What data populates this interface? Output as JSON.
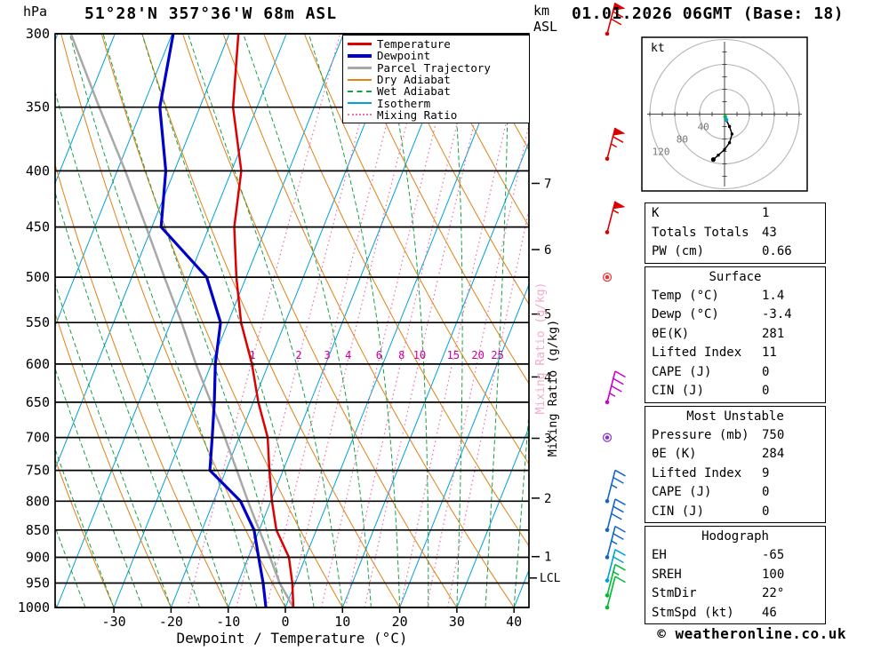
{
  "header": {
    "station_title": "51°28'N 357°36'W 68m ASL",
    "datetime_title": "01.01.2026 06GMT (Base: 18)"
  },
  "axes": {
    "pressure_unit": "hPa",
    "km_unit_top": "km",
    "km_unit_bottom": "ASL",
    "xlabel": "Dewpoint / Temperature (°C)",
    "mixing_ratio_axis_label": "Mixing Ratio (g/kg)",
    "lcl_label": "LCL"
  },
  "colors": {
    "temperature": "#dd0000",
    "dewpoint": "#0000cc",
    "parcel": "#a8a8a8",
    "dry_adiabat": "#e08214",
    "wet_adiabat": "#18a048",
    "isotherm": "#00a0dc",
    "mixing_ratio": "#f070b0",
    "mixing_label": "#cc0099",
    "mixing_axis_ghost": "#f4aacd",
    "grid": "#000000"
  },
  "legend": [
    {
      "label": "Temperature",
      "color": "#dd0000",
      "style": "solid",
      "width": 3
    },
    {
      "label": "Dewpoint",
      "color": "#0000cc",
      "style": "solid",
      "width": 4
    },
    {
      "label": "Parcel Trajectory",
      "color": "#a8a8a8",
      "style": "solid",
      "width": 3
    },
    {
      "label": "Dry Adiabat",
      "color": "#e08214",
      "style": "solid",
      "width": 2
    },
    {
      "label": "Wet Adiabat",
      "color": "#18a048",
      "style": "dashed",
      "width": 2
    },
    {
      "label": "Isotherm",
      "color": "#00a0dc",
      "style": "solid",
      "width": 2
    },
    {
      "label": "Mixing Ratio",
      "color": "#f070b0",
      "style": "dotted",
      "width": 2
    }
  ],
  "chart_data": {
    "type": "skewt-log-p-sounding",
    "title": "51°28'N 357°36'W 68m ASL",
    "x_axis": {
      "label": "Dewpoint / Temperature (°C)",
      "ticks": [
        -30,
        -20,
        -10,
        0,
        10,
        20,
        30,
        40
      ]
    },
    "y_axis": {
      "label": "hPa",
      "scale": "log",
      "levels": [
        300,
        350,
        400,
        450,
        500,
        550,
        600,
        650,
        700,
        750,
        800,
        850,
        900,
        950,
        1000
      ]
    },
    "secondary_y_axis": {
      "label": "km ASL",
      "ticks": [
        1,
        2,
        3,
        4,
        5,
        6,
        7
      ]
    },
    "pressure_hPa": [
      1000,
      950,
      900,
      850,
      800,
      750,
      700,
      650,
      600,
      550,
      500,
      450,
      400,
      350,
      300
    ],
    "temperature_C": [
      1.4,
      -0.5,
      -2.9,
      -7.0,
      -9.8,
      -12.4,
      -15.0,
      -19.1,
      -22.9,
      -27.7,
      -31.7,
      -35.6,
      -38.3,
      -44.2,
      -48.4
    ],
    "dewpoint_C": [
      -3.4,
      -5.6,
      -8.2,
      -10.9,
      -15.3,
      -22.8,
      -24.7,
      -26.8,
      -29.3,
      -31.3,
      -36.9,
      -48.4,
      -51.5,
      -57.0,
      -59.8
    ],
    "parcel_C": [
      1.4,
      -2.7,
      -6.2,
      -10.0,
      -14.0,
      -18.1,
      -22.5,
      -27.4,
      -32.7,
      -38.1,
      -44.3,
      -51.0,
      -58.6,
      -67.6,
      -77.7
    ],
    "mixing_ratio_lines_g_kg": [
      1,
      2,
      3,
      4,
      6,
      8,
      10,
      15,
      20,
      25
    ],
    "isotherm_step_C": 10,
    "dry_adiabat_step_C": 10,
    "wet_adiabat_step_C": 5,
    "lcl_pressure_hPa": 940,
    "wind_barbs": [
      {
        "p": 300,
        "spd": 70,
        "color": "#dd0000"
      },
      {
        "p": 390,
        "spd": 65,
        "color": "#dd0000"
      },
      {
        "p": 455,
        "spd": 55,
        "color": "#dd0000"
      },
      {
        "p": 500,
        "spd": 0,
        "color": "#ee3333"
      },
      {
        "p": 650,
        "spd": 35,
        "color": "#cc00cc"
      },
      {
        "p": 700,
        "spd": 0,
        "color": "#8833cc"
      },
      {
        "p": 800,
        "spd": 25,
        "color": "#1166cc"
      },
      {
        "p": 850,
        "spd": 30,
        "color": "#1166cc"
      },
      {
        "p": 900,
        "spd": 25,
        "color": "#1166cc"
      },
      {
        "p": 945,
        "spd": 20,
        "color": "#00a0e0"
      },
      {
        "p": 975,
        "spd": 15,
        "color": "#00bb33"
      },
      {
        "p": 1000,
        "spd": 10,
        "color": "#00bb33"
      }
    ],
    "hodograph": {
      "unit": "kt",
      "rings_kt": [
        40,
        80,
        120
      ],
      "trace_uv_kt": [
        [
          3,
          -10
        ],
        [
          8,
          -20
        ],
        [
          12,
          -32
        ],
        [
          8,
          -46
        ],
        [
          0,
          -57
        ],
        [
          -10,
          -66
        ],
        [
          -18,
          -73
        ]
      ],
      "surface_dots": [
        {
          "color": "#00bb33",
          "u": 1,
          "v": -4
        },
        {
          "color": "#00a0e0",
          "u": 3,
          "v": -9
        }
      ]
    }
  },
  "table": {
    "sections": [
      {
        "header": null,
        "rows": [
          [
            "K",
            "1"
          ],
          [
            "Totals Totals",
            "43"
          ],
          [
            "PW (cm)",
            "0.66"
          ]
        ]
      },
      {
        "header": "Surface",
        "rows": [
          [
            "Temp (°C)",
            "1.4"
          ],
          [
            "Dewp (°C)",
            "-3.4"
          ],
          [
            "θE(K)",
            "281"
          ],
          [
            "Lifted Index",
            "11"
          ],
          [
            "CAPE (J)",
            "0"
          ],
          [
            "CIN (J)",
            "0"
          ]
        ]
      },
      {
        "header": "Most Unstable",
        "rows": [
          [
            "Pressure (mb)",
            "750"
          ],
          [
            "θE (K)",
            "284"
          ],
          [
            "Lifted Index",
            "9"
          ],
          [
            "CAPE (J)",
            "0"
          ],
          [
            "CIN (J)",
            "0"
          ]
        ]
      },
      {
        "header": "Hodograph",
        "rows": [
          [
            "EH",
            "-65"
          ],
          [
            "SREH",
            "100"
          ],
          [
            "StmDir",
            "22°"
          ],
          [
            "StmSpd (kt)",
            "46"
          ]
        ]
      }
    ]
  },
  "footer": {
    "copyright": "© weatheronline.co.uk"
  }
}
